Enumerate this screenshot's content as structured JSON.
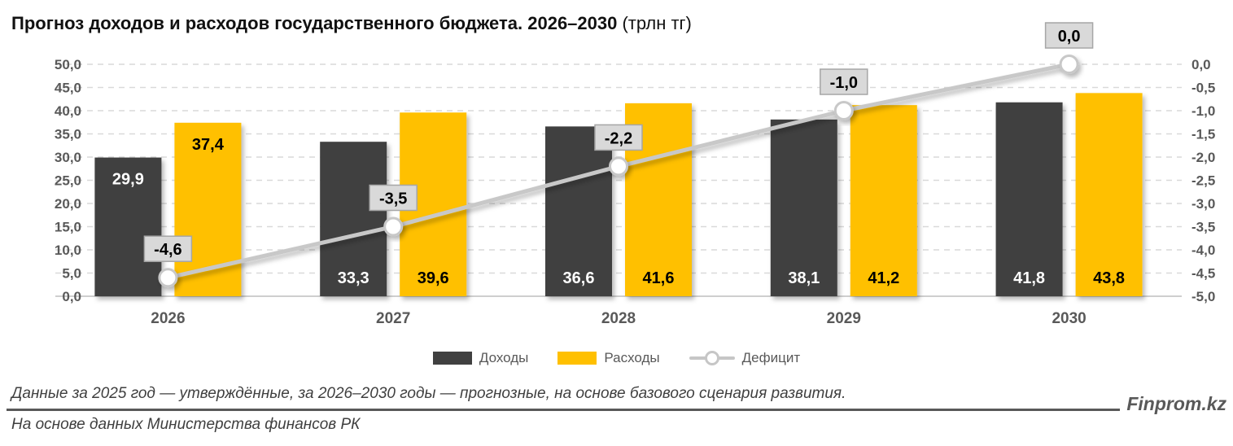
{
  "title": {
    "bold": "Прогноз доходов и расходов государственного бюджета. 2026–2030",
    "normal": " (трлн тг)"
  },
  "chart_data": {
    "type": "bar",
    "subtype": "grouped bars with secondary-axis line",
    "categories": [
      "2026",
      "2027",
      "2028",
      "2029",
      "2030"
    ],
    "series": [
      {
        "name": "Доходы",
        "chart_type": "bar",
        "axis": "left",
        "color": "#404040",
        "label_color": "#FFFFFF",
        "values": [
          29.9,
          33.3,
          36.6,
          38.1,
          41.8
        ],
        "labels": [
          "29,9",
          "33,3",
          "36,6",
          "38,1",
          "41,8"
        ],
        "label_positions": [
          "top",
          "base",
          "base",
          "base",
          "base"
        ]
      },
      {
        "name": "Расходы",
        "chart_type": "bar",
        "axis": "left",
        "color": "#FFC000",
        "label_color": "#000000",
        "values": [
          37.4,
          39.6,
          41.6,
          41.2,
          43.8
        ],
        "labels": [
          "37,4",
          "39,6",
          "41,6",
          "41,2",
          "43,8"
        ],
        "label_positions": [
          "top",
          "base",
          "base",
          "base",
          "base"
        ]
      },
      {
        "name": "Дефицит",
        "chart_type": "line",
        "axis": "right",
        "color": "#C8C8C8",
        "marker": "circle-white-gray-ring",
        "label_box_fill": "#D9D9D9",
        "label_box_border": "#A6A6A6",
        "label_color": "#000000",
        "values": [
          -4.6,
          -3.5,
          -2.2,
          -1.0,
          0.0
        ],
        "labels": [
          "-4,6",
          "-3,5",
          "-2,2",
          "-1,0",
          "0,0"
        ]
      }
    ],
    "left_axis": {
      "min": 0,
      "max": 50,
      "step": 5,
      "ticks": [
        {
          "value": 50,
          "label": "50,0"
        },
        {
          "value": 45,
          "label": "45,0"
        },
        {
          "value": 40,
          "label": "40,0"
        },
        {
          "value": 35,
          "label": "35,0"
        },
        {
          "value": 30,
          "label": "30,0"
        },
        {
          "value": 25,
          "label": "25,0"
        },
        {
          "value": 20,
          "label": "20,0"
        },
        {
          "value": 15,
          "label": "15,0"
        },
        {
          "value": 10,
          "label": "10,0"
        },
        {
          "value": 5,
          "label": "5,0"
        },
        {
          "value": 0,
          "label": "0,0"
        }
      ]
    },
    "right_axis": {
      "min": -5,
      "max": 0,
      "step": 0.5,
      "ticks": [
        {
          "value": 0,
          "label": "0,0"
        },
        {
          "value": -0.5,
          "label": "-0,5"
        },
        {
          "value": -1,
          "label": "-1,0"
        },
        {
          "value": -1.5,
          "label": "-1,5"
        },
        {
          "value": -2,
          "label": "-2,0"
        },
        {
          "value": -2.5,
          "label": "-2,5"
        },
        {
          "value": -3,
          "label": "-3,0"
        },
        {
          "value": -3.5,
          "label": "-3,5"
        },
        {
          "value": -4,
          "label": "-4,0"
        },
        {
          "value": -4.5,
          "label": "-4,5"
        },
        {
          "value": -5,
          "label": "-5,0"
        }
      ]
    },
    "grid": "horizontal dashed",
    "grid_color": "#D9D9D9",
    "axis_text_color": "#595959",
    "legend_position": "bottom"
  },
  "legend": {
    "revenues": "Доходы",
    "expenses": "Расходы",
    "deficit": "Дефицит"
  },
  "footer": {
    "note1": "Данные за 2025 год — утверждённые, за 2026–2030 годы — прогнозные, на основе базового сценария развития.",
    "note2": "На основе данных Министерства финансов РК",
    "brand": "Finprom.kz"
  }
}
